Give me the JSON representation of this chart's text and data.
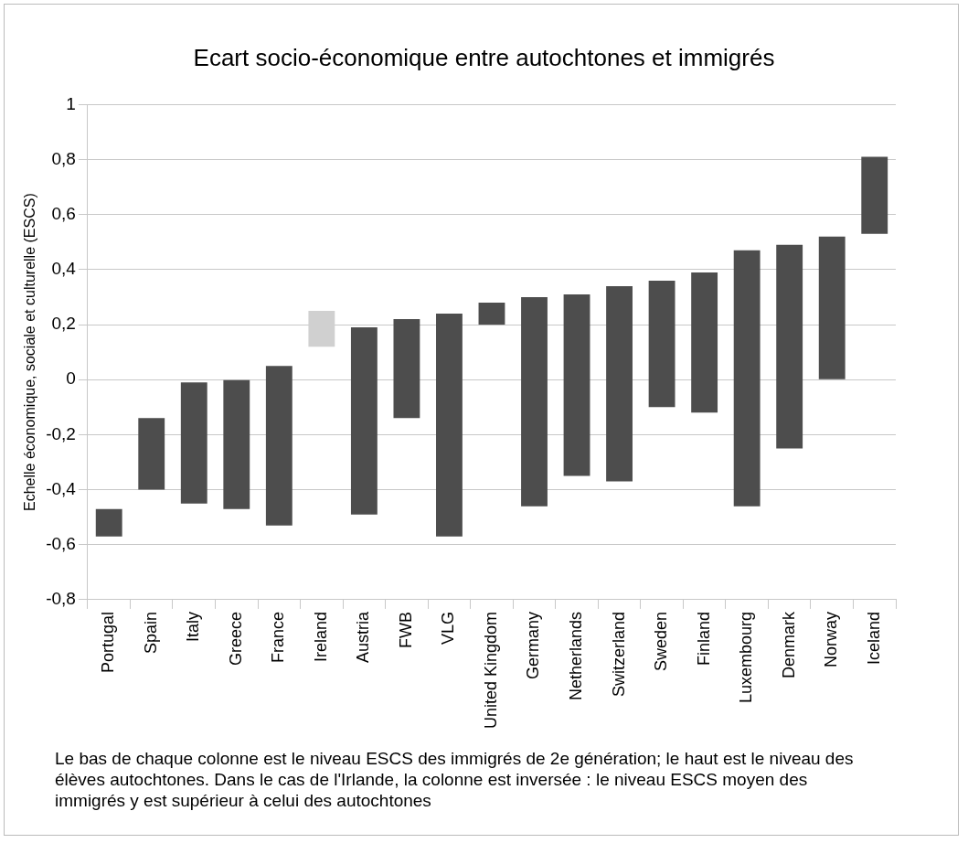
{
  "chart_data": {
    "type": "bar",
    "title": "Ecart socio-économique entre autochtones et immigrés",
    "ylabel": "Echelle économique, sociale et culturelle (ESCS)",
    "categories": [
      "Portugal",
      "Spain",
      "Italy",
      "Greece",
      "France",
      "Ireland",
      "Austria",
      "FWB",
      "VLG",
      "United Kingdom",
      "Germany",
      "Netherlands",
      "Switzerland",
      "Sweden",
      "Finland",
      "Luxembourg",
      "Denmark",
      "Norway",
      "Iceland"
    ],
    "base": [
      -0.57,
      -0.4,
      -0.45,
      -0.47,
      -0.53,
      0.12,
      -0.49,
      -0.14,
      -0.57,
      0.2,
      -0.46,
      -0.35,
      -0.37,
      -0.1,
      -0.12,
      -0.46,
      -0.25,
      0,
      0.53
    ],
    "values": [
      0.1,
      0.26,
      0.44,
      0.47,
      0.58,
      0.13,
      0.68,
      0.36,
      0.81,
      0.08,
      0.76,
      0.66,
      0.71,
      0.46,
      0.51,
      0.93,
      0.74,
      0.52,
      0.28
    ],
    "colors": [
      "#4d4d4d",
      "#4d4d4d",
      "#4d4d4d",
      "#4d4d4d",
      "#4d4d4d",
      "#d0d0d0",
      "#4d4d4d",
      "#4d4d4d",
      "#4d4d4d",
      "#4d4d4d",
      "#4d4d4d",
      "#4d4d4d",
      "#4d4d4d",
      "#4d4d4d",
      "#4d4d4d",
      "#4d4d4d",
      "#4d4d4d",
      "#4d4d4d",
      "#4d4d4d"
    ],
    "ylim": [
      -0.8,
      1
    ],
    "yticks": [
      {
        "value": -0.8,
        "label": "-0,8"
      },
      {
        "value": -0.6,
        "label": "-0,6"
      },
      {
        "value": -0.4,
        "label": "-0,4"
      },
      {
        "value": -0.2,
        "label": "-0,2"
      },
      0,
      {
        "value": 0.2,
        "label": "0,2"
      },
      {
        "value": 0.4,
        "label": "0,4"
      },
      {
        "value": 0.6,
        "label": "0,6"
      },
      {
        "value": 0.8,
        "label": "0,8"
      },
      1
    ],
    "grid": "y",
    "legend": false,
    "annotations": [
      "Le bas de chaque colonne est le niveau ESCS des immigrés de 2e génération; le haut est le niveau des élèves autochtones. Dans le cas de l'Irlande, la colonne est inversée : le niveau ESCS moyen des immigrés y est supérieur à celui des autochtones"
    ]
  }
}
